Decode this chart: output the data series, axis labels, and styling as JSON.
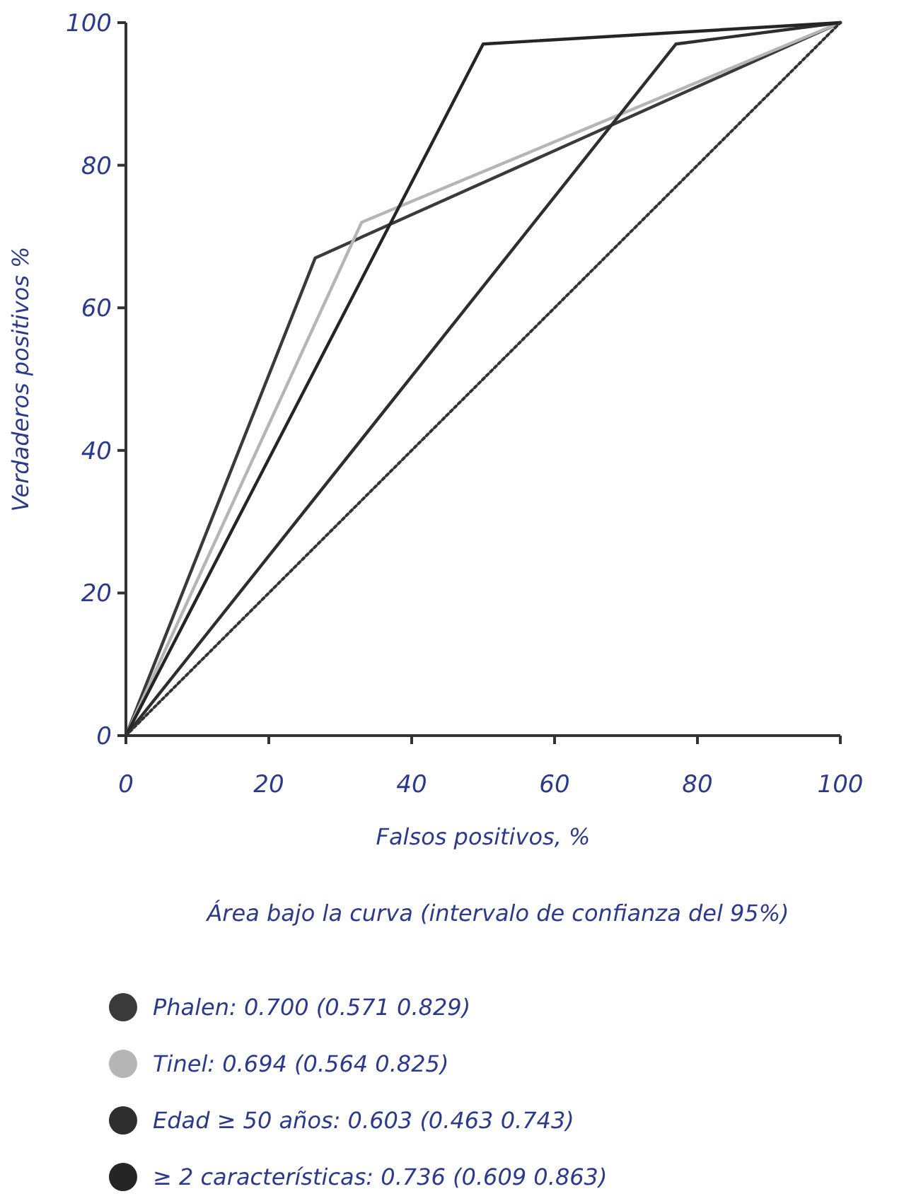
{
  "chart_data": {
    "type": "line",
    "xlabel": "Falsos positivos, %",
    "ylabel": "Verdaderos positivos %",
    "legend_title": "Área bajo la curva (intervalo de confianza del 95%)",
    "xlim": [
      0,
      100
    ],
    "ylim": [
      0,
      100
    ],
    "xticks": [
      0,
      20,
      40,
      60,
      80,
      100
    ],
    "yticks": [
      0,
      20,
      40,
      60,
      80,
      100
    ],
    "grid": false,
    "legend": "bottom",
    "marker": "none",
    "series": [
      {
        "name": "Phalen: 0.700 (0.571 0.829)",
        "color": "#3a3a3a",
        "x": [
          0,
          26.5,
          100
        ],
        "values": [
          0,
          67,
          100
        ]
      },
      {
        "name": "Tinel: 0.694 (0.564 0.825)",
        "color": "#b5b5b5",
        "x": [
          0,
          33,
          100
        ],
        "values": [
          0,
          72,
          100
        ]
      },
      {
        "name": "Edad ≥ 50 años: 0.603 (0.463 0.743)",
        "color": "#2e2e2e",
        "x": [
          0,
          77,
          100
        ],
        "values": [
          0,
          97,
          100
        ]
      },
      {
        "name": "≥ 2 características: 0.736 (0.609 0.863)",
        "color": "#252525",
        "x": [
          0,
          50,
          100
        ],
        "values": [
          0,
          97,
          100
        ]
      },
      {
        "color": "#333333",
        "line_style": "dotted",
        "x": [
          0,
          100
        ],
        "values": [
          0,
          100
        ]
      }
    ]
  }
}
